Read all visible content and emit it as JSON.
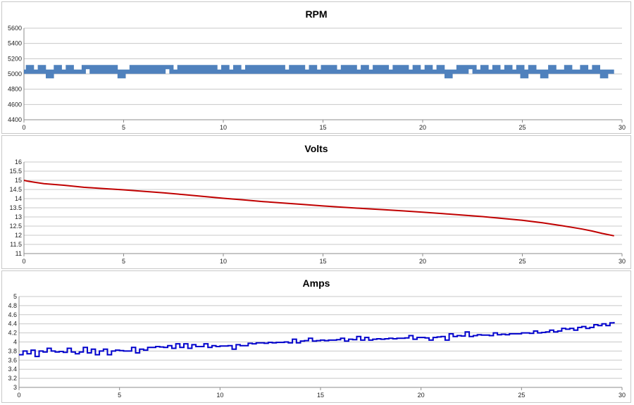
{
  "chart_data": [
    {
      "type": "line",
      "title": "RPM",
      "xlim": [
        0,
        30
      ],
      "ylim": [
        4400,
        5600
      ],
      "xticks": [
        "0",
        "5",
        "10",
        "15",
        "20",
        "25",
        "30"
      ],
      "yticks": [
        "4400",
        "4600",
        "4800",
        "5000",
        "5200",
        "5400",
        "5600"
      ],
      "grid": true,
      "legend": "none",
      "line_color": "#4f81bd",
      "series": [
        {
          "x": [
            0,
            0.2,
            0.4,
            0.6,
            0.8,
            1.0,
            1.2,
            1.4,
            1.6,
            1.8,
            2.0,
            2.2,
            2.4,
            2.6,
            2.8,
            3.0,
            3.2,
            3.4,
            3.6,
            3.8,
            4.0,
            4.2,
            4.4,
            4.6,
            4.8,
            5.0,
            5.2,
            5.4,
            5.6,
            5.8,
            6.0,
            6.2,
            6.4,
            6.6,
            6.8,
            7.0,
            7.2,
            7.4,
            7.6,
            7.8,
            8.0,
            8.2,
            8.4,
            8.6,
            8.8,
            9.0,
            9.2,
            9.4,
            9.6,
            9.8,
            10.0,
            10.2,
            10.4,
            10.6,
            10.8,
            11.0,
            11.2,
            11.4,
            11.6,
            11.8,
            12.0,
            12.2,
            12.4,
            12.6,
            12.8,
            13.0,
            13.2,
            13.4,
            13.6,
            13.8,
            14.0,
            14.2,
            14.4,
            14.6,
            14.8,
            15.0,
            15.2,
            15.4,
            15.6,
            15.8,
            16.0,
            16.2,
            16.4,
            16.6,
            16.8,
            17.0,
            17.2,
            17.4,
            17.6,
            17.8,
            18.0,
            18.2,
            18.4,
            18.6,
            18.8,
            19.0,
            19.2,
            19.4,
            19.6,
            19.8,
            20.0,
            20.2,
            20.4,
            20.6,
            20.8,
            21.0,
            21.2,
            21.4,
            21.6,
            21.8,
            22.0,
            22.2,
            22.4,
            22.6,
            22.8,
            23.0,
            23.2,
            23.4,
            23.6,
            23.8,
            24.0,
            24.2,
            24.4,
            24.6,
            24.8,
            25.0,
            25.2,
            25.4,
            25.6,
            25.8,
            26.0,
            26.2,
            26.4,
            26.6,
            26.8,
            27.0,
            27.2,
            27.4,
            27.6,
            27.8,
            28.0,
            28.2,
            28.4,
            28.6,
            28.8,
            29.0,
            29.2,
            29.4,
            29.6
          ],
          "y": [
            5030,
            5090,
            5030,
            5030,
            5090,
            5030,
            4970,
            5030,
            5090,
            5030,
            5030,
            5090,
            5030,
            5030,
            5030,
            5090,
            5090,
            5030,
            5090,
            5030,
            5090,
            5030,
            5090,
            5030,
            4970,
            5030,
            5030,
            5090,
            5030,
            5090,
            5030,
            5090,
            5030,
            5090,
            5030,
            5090,
            5090,
            5030,
            5030,
            5090,
            5030,
            5090,
            5030,
            5090,
            5030,
            5090,
            5030,
            5090,
            5030,
            5030,
            5090,
            5030,
            5030,
            5090,
            5030,
            5030,
            5090,
            5030,
            5090,
            5030,
            5090,
            5030,
            5090,
            5030,
            5090,
            5030,
            5030,
            5090,
            5030,
            5090,
            5030,
            5030,
            5090,
            5030,
            5030,
            5090,
            5030,
            5090,
            5030,
            5030,
            5090,
            5030,
            5090,
            5030,
            5030,
            5090,
            5030,
            5030,
            5090,
            5030,
            5090,
            5030,
            5030,
            5090,
            5030,
            5090,
            5030,
            5030,
            5090,
            5030,
            5030,
            5090,
            5030,
            5030,
            5090,
            5030,
            4970,
            5030,
            5030,
            5090,
            5030,
            5090,
            5090,
            5030,
            5030,
            5090,
            5030,
            5030,
            5090,
            5030,
            5030,
            5090,
            5030,
            5030,
            5090,
            4970,
            5030,
            5090,
            5030,
            5030,
            4970,
            5030,
            5090,
            5030,
            5030,
            5030,
            5090,
            5030,
            5030,
            5030,
            5090,
            5030,
            5030,
            5090,
            5030,
            4970,
            5030,
            5030,
            5030
          ]
        }
      ]
    },
    {
      "type": "line",
      "title": "Volts",
      "xlim": [
        0,
        30
      ],
      "ylim": [
        11,
        16
      ],
      "xticks": [
        "0",
        "5",
        "10",
        "15",
        "20",
        "25",
        "30"
      ],
      "yticks": [
        "11",
        "11.5",
        "12",
        "12.5",
        "13",
        "13.5",
        "14",
        "14.5",
        "15",
        "15.5",
        "16"
      ],
      "grid": true,
      "legend": "none",
      "line_color": "#c00000",
      "series": [
        {
          "x": [
            0,
            0.2,
            0.5,
            1,
            2,
            3,
            4,
            5,
            6,
            7,
            8,
            9,
            10,
            11,
            12,
            13,
            14,
            15,
            16,
            17,
            18,
            19,
            20,
            21,
            22,
            23,
            24,
            25,
            26,
            27,
            27.5,
            28,
            28.5,
            29,
            29.6
          ],
          "y": [
            15.0,
            14.95,
            14.9,
            14.82,
            14.73,
            14.62,
            14.55,
            14.48,
            14.4,
            14.32,
            14.22,
            14.12,
            14.02,
            13.93,
            13.84,
            13.76,
            13.68,
            13.6,
            13.53,
            13.46,
            13.4,
            13.33,
            13.26,
            13.18,
            13.1,
            13.02,
            12.92,
            12.82,
            12.68,
            12.52,
            12.43,
            12.34,
            12.23,
            12.1,
            11.97
          ]
        }
      ]
    },
    {
      "type": "line",
      "title": "Amps",
      "xlim": [
        0,
        30
      ],
      "ylim": [
        3,
        5
      ],
      "xticks": [
        "0",
        "5",
        "10",
        "15",
        "20",
        "25",
        "30"
      ],
      "yticks": [
        "3",
        "3.2",
        "3.4",
        "3.6",
        "3.8",
        "4",
        "4.2",
        "4.4",
        "4.6",
        "4.8",
        "5"
      ],
      "grid": true,
      "legend": "none",
      "line_color": "#0000cc",
      "series": [
        {
          "x": [
            0,
            0.2,
            0.4,
            0.6,
            0.8,
            1.0,
            1.2,
            1.4,
            1.6,
            1.8,
            2.0,
            2.2,
            2.4,
            2.6,
            2.8,
            3.0,
            3.2,
            3.4,
            3.6,
            3.8,
            4.0,
            4.2,
            4.4,
            4.6,
            4.8,
            5.0,
            5.2,
            5.4,
            5.6,
            5.8,
            6.0,
            6.2,
            6.4,
            6.6,
            6.8,
            7.0,
            7.2,
            7.4,
            7.6,
            7.8,
            8.0,
            8.2,
            8.4,
            8.6,
            8.8,
            9.0,
            9.2,
            9.4,
            9.6,
            9.8,
            10.0,
            10.2,
            10.4,
            10.6,
            10.8,
            11.0,
            11.2,
            11.4,
            11.6,
            11.8,
            12.0,
            12.2,
            12.4,
            12.6,
            12.8,
            13.0,
            13.2,
            13.4,
            13.6,
            13.8,
            14.0,
            14.2,
            14.4,
            14.6,
            14.8,
            15.0,
            15.2,
            15.4,
            15.6,
            15.8,
            16.0,
            16.2,
            16.4,
            16.6,
            16.8,
            17.0,
            17.2,
            17.4,
            17.6,
            17.8,
            18.0,
            18.2,
            18.4,
            18.6,
            18.8,
            19.0,
            19.2,
            19.4,
            19.6,
            19.8,
            20.0,
            20.2,
            20.4,
            20.6,
            20.8,
            21.0,
            21.2,
            21.4,
            21.6,
            21.8,
            22.0,
            22.2,
            22.4,
            22.6,
            22.8,
            23.0,
            23.2,
            23.4,
            23.6,
            23.8,
            24.0,
            24.2,
            24.4,
            24.6,
            24.8,
            25.0,
            25.2,
            25.4,
            25.6,
            25.8,
            26.0,
            26.2,
            26.4,
            26.6,
            26.8,
            27.0,
            27.2,
            27.4,
            27.6,
            27.8,
            28.0,
            28.2,
            28.4,
            28.6,
            28.8,
            29.0,
            29.2,
            29.4,
            29.6
          ],
          "y": [
            3.72,
            3.8,
            3.74,
            3.82,
            3.68,
            3.8,
            3.78,
            3.86,
            3.8,
            3.78,
            3.79,
            3.77,
            3.86,
            3.78,
            3.74,
            3.78,
            3.88,
            3.76,
            3.84,
            3.72,
            3.8,
            3.84,
            3.72,
            3.8,
            3.82,
            3.81,
            3.8,
            3.8,
            3.88,
            3.76,
            3.84,
            3.82,
            3.88,
            3.88,
            3.9,
            3.89,
            3.88,
            3.92,
            3.86,
            3.96,
            3.88,
            3.96,
            3.86,
            3.94,
            3.9,
            3.9,
            3.96,
            3.88,
            3.92,
            3.9,
            3.91,
            3.91,
            3.92,
            3.84,
            3.94,
            3.92,
            3.92,
            3.97,
            3.96,
            3.98,
            3.98,
            3.97,
            3.99,
            3.98,
            3.99,
            3.99,
            4.0,
            3.98,
            4.06,
            3.98,
            4.02,
            4.03,
            4.08,
            4.02,
            4.03,
            4.04,
            4.03,
            4.04,
            4.04,
            4.05,
            4.08,
            4.02,
            4.06,
            4.05,
            4.12,
            4.04,
            4.1,
            4.04,
            4.06,
            4.07,
            4.06,
            4.07,
            4.08,
            4.07,
            4.08,
            4.08,
            4.09,
            4.14,
            4.06,
            4.1,
            4.1,
            4.09,
            4.04,
            4.1,
            4.11,
            4.12,
            4.04,
            4.18,
            4.12,
            4.14,
            4.13,
            4.22,
            4.12,
            4.14,
            4.16,
            4.15,
            4.15,
            4.14,
            4.2,
            4.16,
            4.17,
            4.16,
            4.18,
            4.18,
            4.18,
            4.2,
            4.2,
            4.19,
            4.24,
            4.2,
            4.21,
            4.22,
            4.26,
            4.22,
            4.24,
            4.3,
            4.28,
            4.3,
            4.26,
            4.32,
            4.34,
            4.3,
            4.32,
            4.38,
            4.36,
            4.4,
            4.36,
            4.42,
            4.44
          ]
        }
      ]
    }
  ]
}
